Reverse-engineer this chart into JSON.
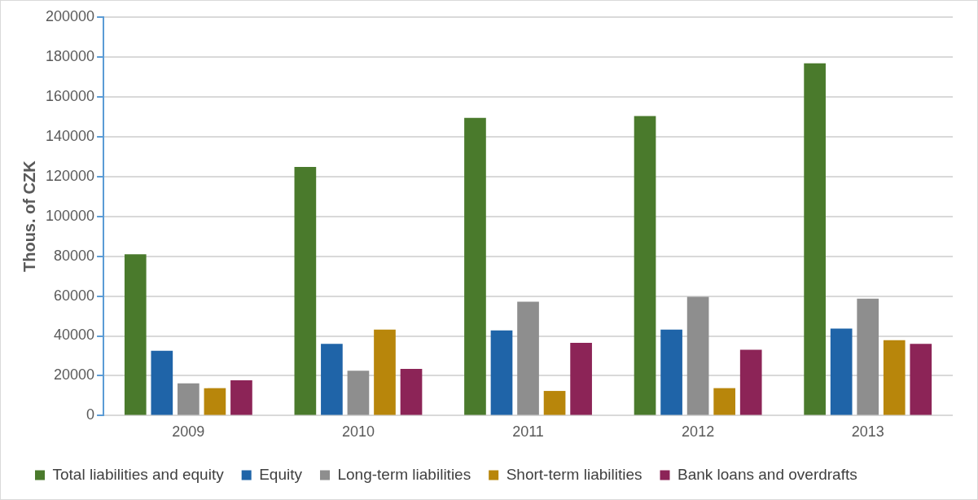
{
  "chart_data": {
    "type": "bar",
    "ylabel": "Thous. of CZK",
    "categories": [
      "2009",
      "2010",
      "2011",
      "2012",
      "2013"
    ],
    "series": [
      {
        "name": "Total liabilities and equity",
        "color": "#4a7a2c",
        "values": [
          81000,
          124800,
          149400,
          150300,
          176800
        ]
      },
      {
        "name": "Equity",
        "color": "#1f64a8",
        "values": [
          32600,
          36000,
          42800,
          43200,
          43700
        ]
      },
      {
        "name": "Long-term liabilities",
        "color": "#8e8e8e",
        "values": [
          16200,
          22500,
          57200,
          59600,
          58700
        ]
      },
      {
        "name": "Short-term liabilities",
        "color": "#b8860b",
        "values": [
          13800,
          43200,
          12400,
          13800,
          37900
        ]
      },
      {
        "name": "Bank loans and overdrafts",
        "color": "#8c2457",
        "values": [
          17700,
          23500,
          36500,
          33100,
          36000
        ]
      }
    ],
    "ylim": [
      0,
      200000
    ],
    "yticks": [
      0,
      20000,
      40000,
      60000,
      80000,
      100000,
      120000,
      140000,
      160000,
      180000,
      200000
    ],
    "grid": "y",
    "legend": "bottom"
  }
}
